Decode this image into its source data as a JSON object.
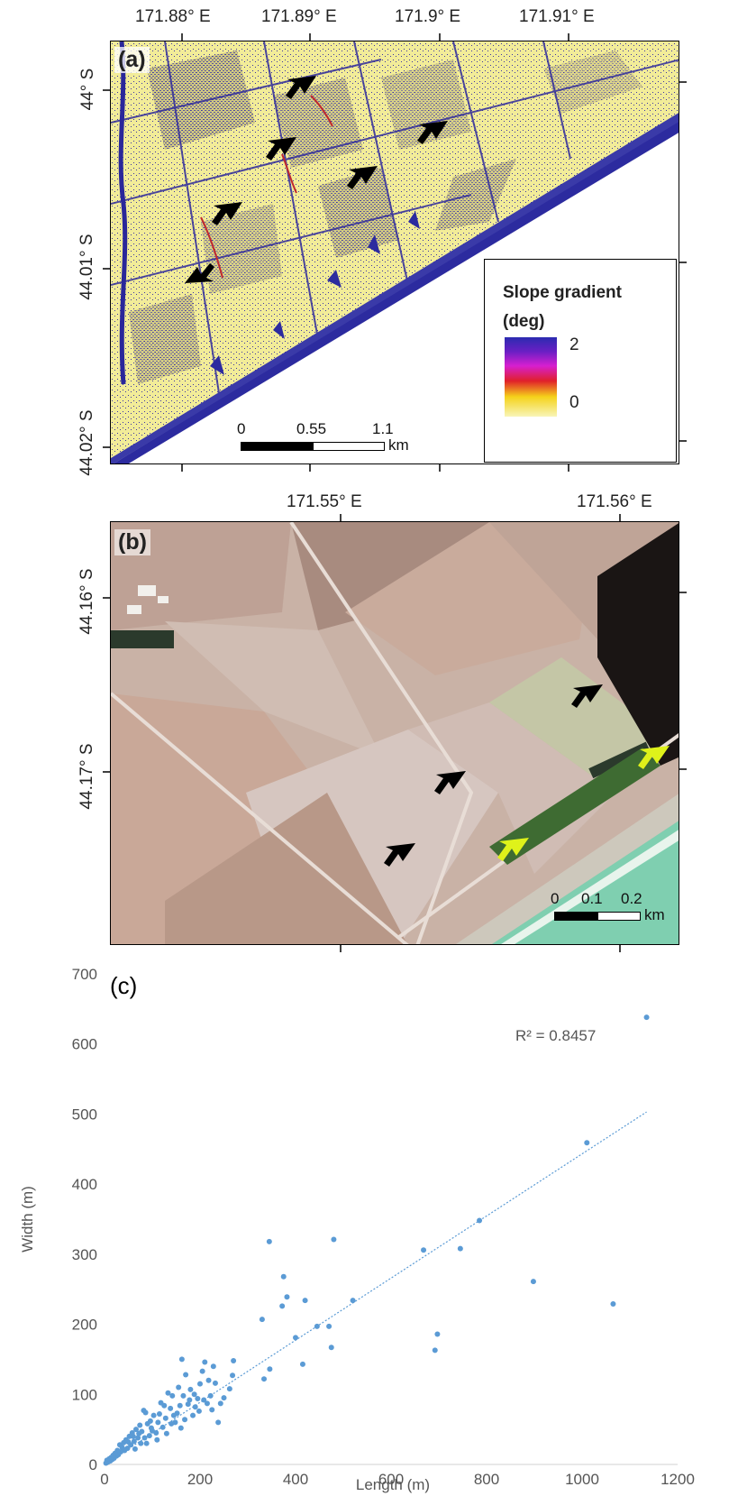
{
  "panel_a": {
    "tag": "(a)",
    "lon_ticks": [
      "171.88° E",
      "171.89° E",
      "171.9° E",
      "171.91° E"
    ],
    "lat_ticks": [
      "44° S",
      "44.01° S",
      "44.02° S"
    ],
    "legend": {
      "title": "Slope gradient",
      "unit": "(deg)",
      "max": "2",
      "min": "0"
    },
    "scale_bar": {
      "labels": [
        "0",
        "0.55",
        "1.1"
      ],
      "unit": "km"
    },
    "arrow_color": "#000000"
  },
  "panel_b": {
    "tag": "(b)",
    "lon_ticks": [
      "171.55° E",
      "171.56° E"
    ],
    "lat_ticks": [
      "44.16° S",
      "44.17° S"
    ],
    "scale_bar": {
      "labels": [
        "0",
        "0.1",
        "0.2"
      ],
      "unit": "km"
    },
    "arrow_colors": {
      "black": "#000000",
      "yellow": "#dff21a"
    }
  },
  "chart_data": {
    "type": "scatter",
    "tag": "(c)",
    "xlabel": "Length (m)",
    "ylabel": "Width (m)",
    "xlim": [
      0,
      1200
    ],
    "ylim": [
      0,
      700
    ],
    "xticks": [
      0,
      200,
      400,
      600,
      800,
      1000,
      1200
    ],
    "yticks": [
      0,
      100,
      200,
      300,
      400,
      500,
      600,
      700
    ],
    "trendline": {
      "type": "linear",
      "label": "R² = 0.8457",
      "x": [
        0,
        1135
      ],
      "y": [
        0,
        503
      ]
    },
    "point_color": "#5b9bd5",
    "grid": false,
    "points": [
      [
        1135,
        638
      ],
      [
        1010,
        459
      ],
      [
        1065,
        229
      ],
      [
        898,
        261
      ],
      [
        785,
        348
      ],
      [
        745,
        308
      ],
      [
        668,
        306
      ],
      [
        697,
        186
      ],
      [
        692,
        163
      ],
      [
        520,
        234
      ],
      [
        480,
        321
      ],
      [
        470,
        197
      ],
      [
        475,
        167
      ],
      [
        445,
        197
      ],
      [
        420,
        234
      ],
      [
        415,
        143
      ],
      [
        400,
        181
      ],
      [
        382,
        239
      ],
      [
        375,
        268
      ],
      [
        372,
        226
      ],
      [
        345,
        318
      ],
      [
        346,
        136
      ],
      [
        330,
        207
      ],
      [
        334,
        122
      ],
      [
        270,
        148
      ],
      [
        268,
        127
      ],
      [
        262,
        108
      ],
      [
        243,
        87
      ],
      [
        238,
        60
      ],
      [
        232,
        116
      ],
      [
        228,
        140
      ],
      [
        222,
        98
      ],
      [
        215,
        87
      ],
      [
        210,
        146
      ],
      [
        205,
        133
      ],
      [
        200,
        115
      ],
      [
        195,
        94
      ],
      [
        190,
        82
      ],
      [
        185,
        70
      ],
      [
        180,
        107
      ],
      [
        175,
        86
      ],
      [
        170,
        128
      ],
      [
        165,
        98
      ],
      [
        162,
        150
      ],
      [
        158,
        84
      ],
      [
        152,
        73
      ],
      [
        148,
        60
      ],
      [
        142,
        98
      ],
      [
        138,
        80
      ],
      [
        133,
        102
      ],
      [
        128,
        66
      ],
      [
        122,
        53
      ],
      [
        118,
        88
      ],
      [
        112,
        60
      ],
      [
        108,
        45
      ],
      [
        103,
        70
      ],
      [
        98,
        52
      ],
      [
        94,
        41
      ],
      [
        90,
        58
      ],
      [
        86,
        74
      ],
      [
        82,
        77
      ],
      [
        78,
        47
      ],
      [
        74,
        56
      ],
      [
        70,
        38
      ],
      [
        66,
        50
      ],
      [
        62,
        33
      ],
      [
        58,
        45
      ],
      [
        55,
        28
      ],
      [
        52,
        40
      ],
      [
        48,
        23
      ],
      [
        45,
        35
      ],
      [
        42,
        20
      ],
      [
        40,
        31
      ],
      [
        37,
        24
      ],
      [
        34,
        18
      ],
      [
        32,
        28
      ],
      [
        29,
        14
      ],
      [
        27,
        20
      ],
      [
        25,
        12
      ],
      [
        22,
        16
      ],
      [
        20,
        9
      ],
      [
        18,
        13
      ],
      [
        16,
        7
      ],
      [
        14,
        10
      ],
      [
        12,
        5
      ],
      [
        10,
        8
      ],
      [
        8,
        4
      ],
      [
        6,
        3
      ],
      [
        5,
        6
      ],
      [
        3,
        2
      ],
      [
        60,
        40
      ],
      [
        72,
        44
      ],
      [
        88,
        30
      ],
      [
        96,
        62
      ],
      [
        115,
        72
      ],
      [
        125,
        84
      ],
      [
        140,
        58
      ],
      [
        155,
        110
      ],
      [
        168,
        64
      ],
      [
        178,
        92
      ],
      [
        188,
        100
      ],
      [
        198,
        76
      ],
      [
        208,
        92
      ],
      [
        218,
        120
      ],
      [
        225,
        78
      ],
      [
        250,
        95
      ],
      [
        50,
        32
      ],
      [
        64,
        22
      ],
      [
        76,
        30
      ],
      [
        84,
        38
      ],
      [
        100,
        48
      ],
      [
        110,
        35
      ],
      [
        130,
        44
      ],
      [
        145,
        70
      ],
      [
        160,
        52
      ]
    ]
  }
}
